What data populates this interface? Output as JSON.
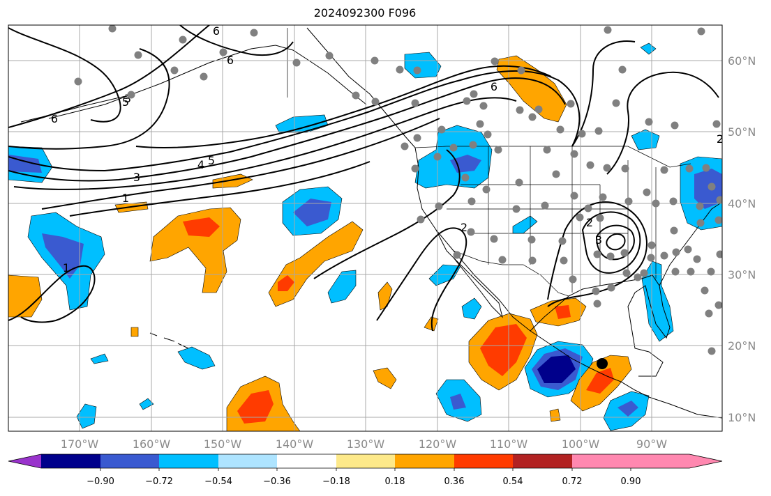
{
  "title": "2024092300 F096",
  "lat_labels": [
    "60°N",
    "50°N",
    "40°N",
    "30°N",
    "20°N",
    "10°N"
  ],
  "lon_labels": [
    "170°W",
    "160°W",
    "150°W",
    "140°W",
    "130°W",
    "120°W",
    "110°W",
    "100°W",
    "90°W"
  ],
  "colorbar": {
    "tick_labels": [
      "−0.90",
      "−0.72",
      "−0.54",
      "−0.36",
      "−0.18",
      "0.18",
      "0.36",
      "0.54",
      "0.72",
      "0.90"
    ],
    "colors": [
      "#9933cc",
      "#00008b",
      "#3a5ad0",
      "#00bfff",
      "#aee4ff",
      "#ffffff",
      "#fde98a",
      "#ffa500",
      "#ff3b00",
      "#b22222",
      "#ff88b0"
    ]
  },
  "contour_labels": [
    "6",
    "5",
    "6",
    "3",
    "6",
    "4",
    "5",
    "3",
    "1",
    "6",
    "2",
    "1",
    "2",
    "3",
    "2"
  ],
  "colors": {
    "contour": "#000000",
    "grid": "#a8a8a8",
    "coast": "#000000",
    "station": "#808080",
    "marker": "#000000"
  }
}
